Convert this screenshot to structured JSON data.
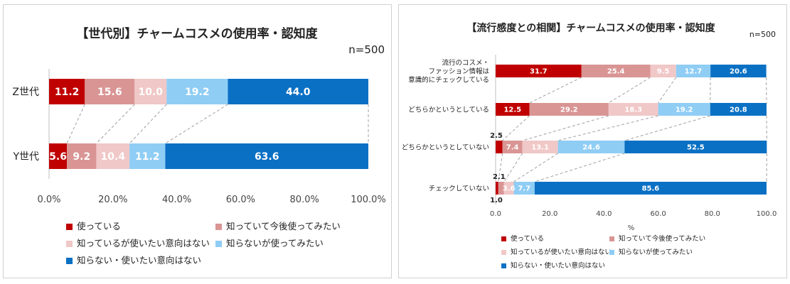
{
  "colors": {
    "series": [
      "#c00000",
      "#d99594",
      "#f0c8c7",
      "#8fcdf5",
      "#0a70c4"
    ],
    "segment_text": [
      "#ffffff",
      "#ffffff",
      "#ffffff",
      "#ffffff",
      "#ffffff"
    ],
    "axis": "#bfbfbf",
    "dash": "#a0a0a0"
  },
  "chart_data": [
    {
      "type": "bar",
      "orientation": "horizontal",
      "stacked": true,
      "title": "【世代別】チャームコスメの使用率・認知度",
      "sample_note": "n=500",
      "categories": [
        "Z世代",
        "Y世代"
      ],
      "series": [
        {
          "name": "使っている",
          "values": [
            11.2,
            5.6
          ],
          "labels": [
            "11.2",
            "5.6"
          ]
        },
        {
          "name": "知っていて今後使ってみたい",
          "values": [
            15.6,
            9.2
          ],
          "labels": [
            "15.6",
            "9.2"
          ]
        },
        {
          "name": "知っているが使いたい意向はない",
          "values": [
            10.0,
            10.4
          ],
          "labels": [
            "10.0",
            "10.4"
          ]
        },
        {
          "name": "知らないが使ってみたい",
          "values": [
            19.2,
            11.2
          ],
          "labels": [
            "19.2",
            "11.2"
          ]
        },
        {
          "name": "知らない・使いたい意向はない",
          "values": [
            44.0,
            63.6
          ],
          "labels": [
            "44.0",
            "63.6"
          ]
        }
      ],
      "xlim": [
        0,
        100
      ],
      "xticks": [
        "0.0%",
        "20.0%",
        "40.0%",
        "60.0%",
        "80.0%",
        "100.0%"
      ],
      "xlabel": "",
      "legend_position": "bottom"
    },
    {
      "type": "bar",
      "orientation": "horizontal",
      "stacked": true,
      "title": "【流行感度との相関】チャームコスメの使用率・認知度",
      "sample_note": "n=500",
      "categories": [
        [
          "流行のコスメ・",
          "ファッション情報は",
          "意識的にチェックしている"
        ],
        [
          "どちらかというとしている"
        ],
        [
          "どちらかというとしていない"
        ],
        [
          "チェックしていない"
        ]
      ],
      "series": [
        {
          "name": "使っている",
          "values": [
            31.7,
            12.5,
            2.5,
            1.0
          ],
          "labels": [
            "31.7",
            "12.5",
            "2.5",
            "1.0"
          ]
        },
        {
          "name": "知っていて今後使ってみたい",
          "values": [
            25.4,
            29.2,
            7.4,
            2.1
          ],
          "labels": [
            "25.4",
            "29.2",
            "7.4",
            "2.1"
          ]
        },
        {
          "name": "知っているが使いたい意向はない",
          "values": [
            9.5,
            18.3,
            13.1,
            3.6
          ],
          "labels": [
            "9.5",
            "18.3",
            "13.1",
            "3.6"
          ]
        },
        {
          "name": "知らないが使ってみたい",
          "values": [
            12.7,
            19.2,
            24.6,
            7.7
          ],
          "labels": [
            "12.7",
            "19.2",
            "24.6",
            "7.7"
          ]
        },
        {
          "name": "知らない・使いたい意向はない",
          "values": [
            20.6,
            20.8,
            52.5,
            85.6
          ],
          "labels": [
            "20.6",
            "20.8",
            "52.5",
            "85.6"
          ]
        }
      ],
      "xlim": [
        0,
        100
      ],
      "xticks": [
        "0.0",
        "20.0",
        "40.0",
        "60.0",
        "80.0",
        "100.0"
      ],
      "xlabel": "%",
      "legend_position": "bottom"
    }
  ]
}
